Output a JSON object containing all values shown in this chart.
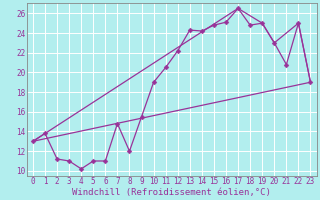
{
  "xlabel": "Windchill (Refroidissement éolien,°C)",
  "bg_color": "#b2eeee",
  "line_color": "#993399",
  "grid_color": "#aadddd",
  "xlim": [
    -0.5,
    23.5
  ],
  "ylim": [
    9.5,
    27
  ],
  "yticks": [
    10,
    12,
    14,
    16,
    18,
    20,
    22,
    24,
    26
  ],
  "xticks": [
    0,
    1,
    2,
    3,
    4,
    5,
    6,
    7,
    8,
    9,
    10,
    11,
    12,
    13,
    14,
    15,
    16,
    17,
    18,
    19,
    20,
    21,
    22,
    23
  ],
  "line1_x": [
    0,
    1,
    2,
    3,
    4,
    5,
    6,
    7,
    8,
    9,
    10,
    11,
    12,
    13,
    14,
    15,
    16,
    17,
    18,
    19,
    20,
    21,
    22,
    23
  ],
  "line1_y": [
    13.0,
    13.8,
    11.2,
    11.0,
    10.2,
    11.0,
    11.0,
    14.8,
    12.0,
    15.5,
    19.0,
    20.5,
    22.2,
    24.3,
    24.2,
    24.8,
    25.1,
    26.5,
    24.8,
    25.0,
    23.0,
    20.8,
    25.0,
    19.0
  ],
  "line2_x": [
    0,
    17,
    19,
    20,
    22,
    23
  ],
  "line2_y": [
    13.0,
    26.5,
    25.0,
    23.0,
    25.0,
    19.0
  ],
  "line3_x": [
    0,
    23
  ],
  "line3_y": [
    13.0,
    19.0
  ],
  "xlabel_fontsize": 6.5,
  "tick_fontsize": 5.5,
  "marker": "D",
  "markersize": 2.5,
  "linewidth": 0.9
}
